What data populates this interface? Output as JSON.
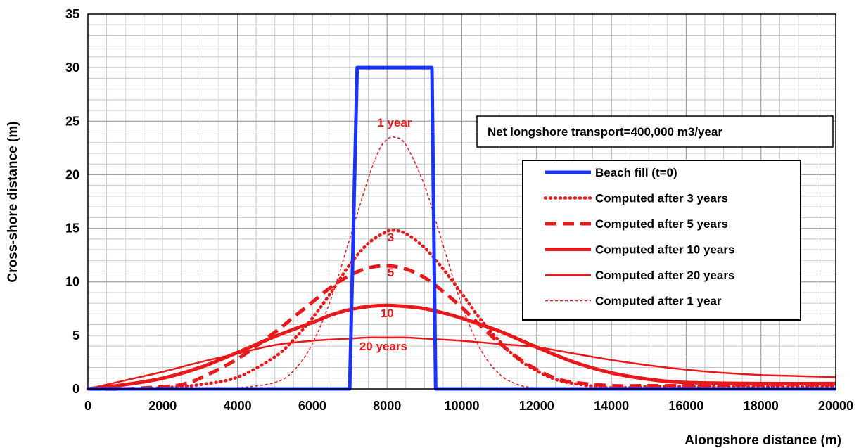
{
  "chart_data": {
    "type": "line",
    "xlabel": "Alongshore distance (m)",
    "ylabel": "Cross-shore distance (m)",
    "xlim": [
      0,
      20000
    ],
    "ylim": [
      0,
      35
    ],
    "x_ticks": [
      0,
      2000,
      4000,
      6000,
      8000,
      10000,
      12000,
      14000,
      16000,
      18000,
      20000
    ],
    "y_ticks": [
      0,
      5,
      10,
      15,
      20,
      25,
      30,
      35
    ],
    "grid": true,
    "legend_position": "right",
    "series": [
      {
        "name": "Beach fill (t=0)",
        "color": "#1a33ff",
        "style": "solid-thick",
        "x": [
          0,
          7000,
          7200,
          9200,
          9300,
          20000
        ],
        "y": [
          0,
          0,
          30,
          30,
          0,
          0
        ]
      },
      {
        "name": "Computed after 3 years",
        "color": "#e8191b",
        "style": "dotted-thick",
        "x": [
          0,
          1000,
          2000,
          3000,
          4000,
          5000,
          5500,
          6000,
          6500,
          7000,
          7500,
          8000,
          8200,
          8500,
          9000,
          9500,
          10000,
          10500,
          11000,
          11500,
          12000,
          12500,
          13000,
          14000,
          15000,
          16000,
          18000,
          20000
        ],
        "y": [
          0,
          0,
          0.1,
          0.4,
          1.1,
          3.0,
          4.6,
          6.6,
          9.0,
          11.6,
          13.6,
          14.7,
          14.8,
          14.5,
          13.2,
          11.2,
          8.9,
          6.5,
          4.5,
          2.8,
          1.7,
          0.9,
          0.5,
          0.1,
          0.2,
          0.2,
          0.2,
          0.2
        ]
      },
      {
        "name": "Computed after 5 years",
        "color": "#e8191b",
        "style": "dashed-thick",
        "x": [
          0,
          1000,
          2000,
          2500,
          3000,
          4000,
          5000,
          5500,
          6000,
          6500,
          7000,
          7500,
          8000,
          8500,
          9000,
          9500,
          10000,
          10500,
          11000,
          11500,
          12000,
          12500,
          13000,
          14000,
          15000,
          16000,
          18000,
          20000
        ],
        "y": [
          0,
          0,
          0.2,
          0.4,
          1.0,
          2.8,
          5.3,
          6.7,
          8.1,
          9.5,
          10.6,
          11.3,
          11.5,
          11.2,
          10.4,
          9.1,
          7.6,
          5.9,
          4.3,
          2.9,
          1.8,
          1.0,
          0.6,
          0.3,
          0.3,
          0.3,
          0.4,
          0.4
        ]
      },
      {
        "name": "Computed after 10 years",
        "color": "#e8191b",
        "style": "solid-thick",
        "x": [
          0,
          1000,
          2000,
          3000,
          4000,
          5000,
          6000,
          6500,
          7000,
          7500,
          8000,
          8500,
          9000,
          9500,
          10000,
          11000,
          12000,
          13000,
          14000,
          15000,
          16000,
          18000,
          20000
        ],
        "y": [
          0,
          0.4,
          1.0,
          2.0,
          3.4,
          4.9,
          6.2,
          6.9,
          7.4,
          7.7,
          7.8,
          7.7,
          7.5,
          7.1,
          6.6,
          5.4,
          3.9,
          2.5,
          1.5,
          0.9,
          0.6,
          0.5,
          0.5
        ]
      },
      {
        "name": "Computed after 20 years",
        "color": "#e8191b",
        "style": "solid-medium",
        "x": [
          0,
          1000,
          2000,
          3000,
          4000,
          5000,
          6000,
          7000,
          7500,
          8000,
          8500,
          9000,
          10000,
          11000,
          12000,
          13000,
          14000,
          15000,
          16000,
          17000,
          18000,
          19000,
          20000
        ],
        "y": [
          0,
          0.8,
          1.6,
          2.5,
          3.3,
          4.1,
          4.5,
          4.7,
          4.8,
          4.8,
          4.8,
          4.7,
          4.5,
          4.2,
          3.9,
          3.3,
          2.7,
          2.2,
          1.8,
          1.5,
          1.3,
          1.2,
          1.1
        ]
      },
      {
        "name": "Computed after 1 year",
        "color": "#e8191b",
        "style": "dashed-thin",
        "x": [
          0,
          3000,
          4000,
          5000,
          5500,
          6000,
          6500,
          7000,
          7500,
          7800,
          8000,
          8200,
          8500,
          9000,
          9500,
          10000,
          10500,
          11000,
          11500,
          12000,
          13000,
          20000
        ],
        "y": [
          0,
          0,
          0.1,
          0.6,
          1.7,
          4.2,
          8.4,
          14.0,
          19.7,
          22.4,
          23.3,
          23.5,
          22.8,
          19.0,
          13.4,
          7.8,
          3.7,
          1.4,
          0.4,
          0.1,
          0,
          0
        ]
      }
    ],
    "annotations": [
      {
        "text": "1 year",
        "x": 8200,
        "y": 24.5
      },
      {
        "text": "3",
        "x": 8100,
        "y": 13.8
      },
      {
        "text": "5",
        "x": 8100,
        "y": 10.5
      },
      {
        "text": "10",
        "x": 8000,
        "y": 6.7
      },
      {
        "text": "20 years",
        "x": 7900,
        "y": 3.6
      }
    ],
    "note": "Net longshore transport=400,000 m3/year"
  }
}
